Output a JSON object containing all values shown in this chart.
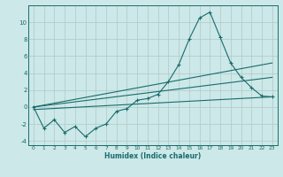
{
  "xlabel": "Humidex (Indice chaleur)",
  "xlim": [
    -0.5,
    23.5
  ],
  "ylim": [
    -4.5,
    12.0
  ],
  "yticks": [
    -4,
    -2,
    0,
    2,
    4,
    6,
    8,
    10
  ],
  "xticks": [
    0,
    1,
    2,
    3,
    4,
    5,
    6,
    7,
    8,
    9,
    10,
    11,
    12,
    13,
    14,
    15,
    16,
    17,
    18,
    19,
    20,
    21,
    22,
    23
  ],
  "bg_color": "#cce8e8",
  "grid_color": "#b0c8c8",
  "line_color": "#1a6b6b",
  "main_x": [
    0,
    1,
    2,
    3,
    4,
    5,
    6,
    7,
    8,
    9,
    10,
    11,
    12,
    13,
    14,
    15,
    16,
    17,
    18,
    19,
    20,
    21,
    22,
    23
  ],
  "main_y": [
    0.0,
    -2.5,
    -1.5,
    -3.0,
    -2.3,
    -3.5,
    -2.5,
    -2.0,
    -0.5,
    -0.2,
    0.8,
    1.0,
    1.5,
    3.0,
    5.0,
    8.0,
    10.5,
    11.2,
    8.2,
    5.2,
    3.5,
    2.3,
    1.3,
    1.2
  ],
  "regline1_x": [
    0,
    23
  ],
  "regline1_y": [
    0.0,
    5.2
  ],
  "regline2_x": [
    0,
    23
  ],
  "regline2_y": [
    0.0,
    3.5
  ],
  "regline3_x": [
    0,
    23
  ],
  "regline3_y": [
    -0.3,
    1.2
  ],
  "figsize": [
    3.2,
    2.0
  ],
  "dpi": 100
}
